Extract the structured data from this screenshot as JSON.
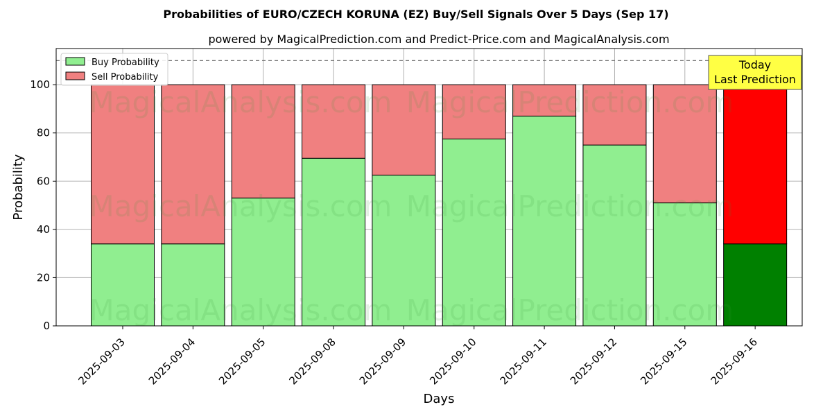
{
  "chart_data": {
    "type": "bar",
    "stacked": true,
    "title": "Probabilities of EURO/CZECH KORUNA (EZ) Buy/Sell Signals Over 5 Days (Sep 17)",
    "subtitle": "powered by MagicalPrediction.com and Predict-Price.com and MagicalAnalysis.com",
    "xlabel": "Days",
    "ylabel": "Probability",
    "ylim": [
      0,
      115
    ],
    "yticks": [
      0,
      20,
      40,
      60,
      80,
      100
    ],
    "grid": true,
    "reference_line": 110,
    "legend_position": "top-left",
    "categories": [
      "2025-09-03",
      "2025-09-04",
      "2025-09-05",
      "2025-09-08",
      "2025-09-09",
      "2025-09-10",
      "2025-09-11",
      "2025-09-12",
      "2025-09-15",
      "2025-09-16"
    ],
    "series": [
      {
        "name": "Buy Probability",
        "color": "#90ee90",
        "highlight_color": "#008000",
        "values": [
          34,
          34,
          53,
          69.5,
          62.5,
          77.5,
          87,
          75,
          51,
          34
        ]
      },
      {
        "name": "Sell Probability",
        "color": "#f08080",
        "highlight_color": "#ff0000",
        "values": [
          66,
          66,
          47,
          30.5,
          37.5,
          22.5,
          13,
          25,
          49,
          66
        ]
      }
    ],
    "highlight_index": 9,
    "annotation": {
      "lines": [
        "Today",
        "Last Prediction"
      ],
      "color": "#ffff44"
    },
    "watermarks": [
      "MagicalAnalysis.com",
      "MagicalPrediction.com"
    ]
  }
}
